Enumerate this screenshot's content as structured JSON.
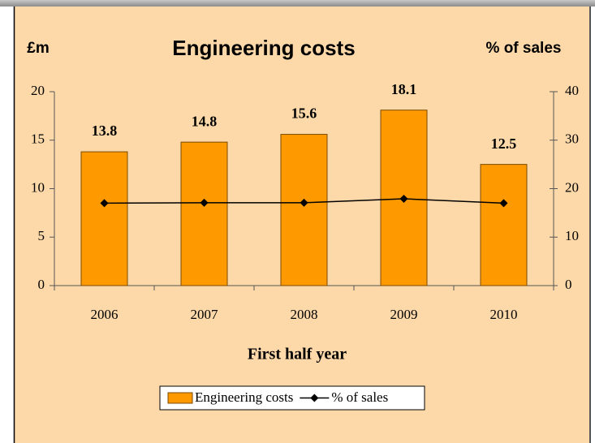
{
  "chart_data": {
    "type": "bar",
    "title": "Engineering costs",
    "ylabel": "£m",
    "y2label": "% of sales",
    "xlabel": "First half year",
    "categories": [
      "2006",
      "2007",
      "2008",
      "2009",
      "2010"
    ],
    "series": [
      {
        "name": "Engineering costs",
        "type": "bar",
        "color": "#ff9900",
        "values": [
          13.8,
          14.8,
          15.6,
          18.1,
          12.5
        ]
      },
      {
        "name": "% of sales",
        "type": "line",
        "axis": "y2",
        "color": "#000000",
        "values": [
          17,
          17.1,
          17.1,
          17.9,
          17
        ]
      }
    ],
    "ylim": [
      0,
      20
    ],
    "yticks": [
      0,
      5,
      10,
      15,
      20
    ],
    "y2lim": [
      0,
      40
    ],
    "y2ticks": [
      0,
      10,
      20,
      30,
      40
    ],
    "grid": false,
    "legend": "bottom"
  }
}
